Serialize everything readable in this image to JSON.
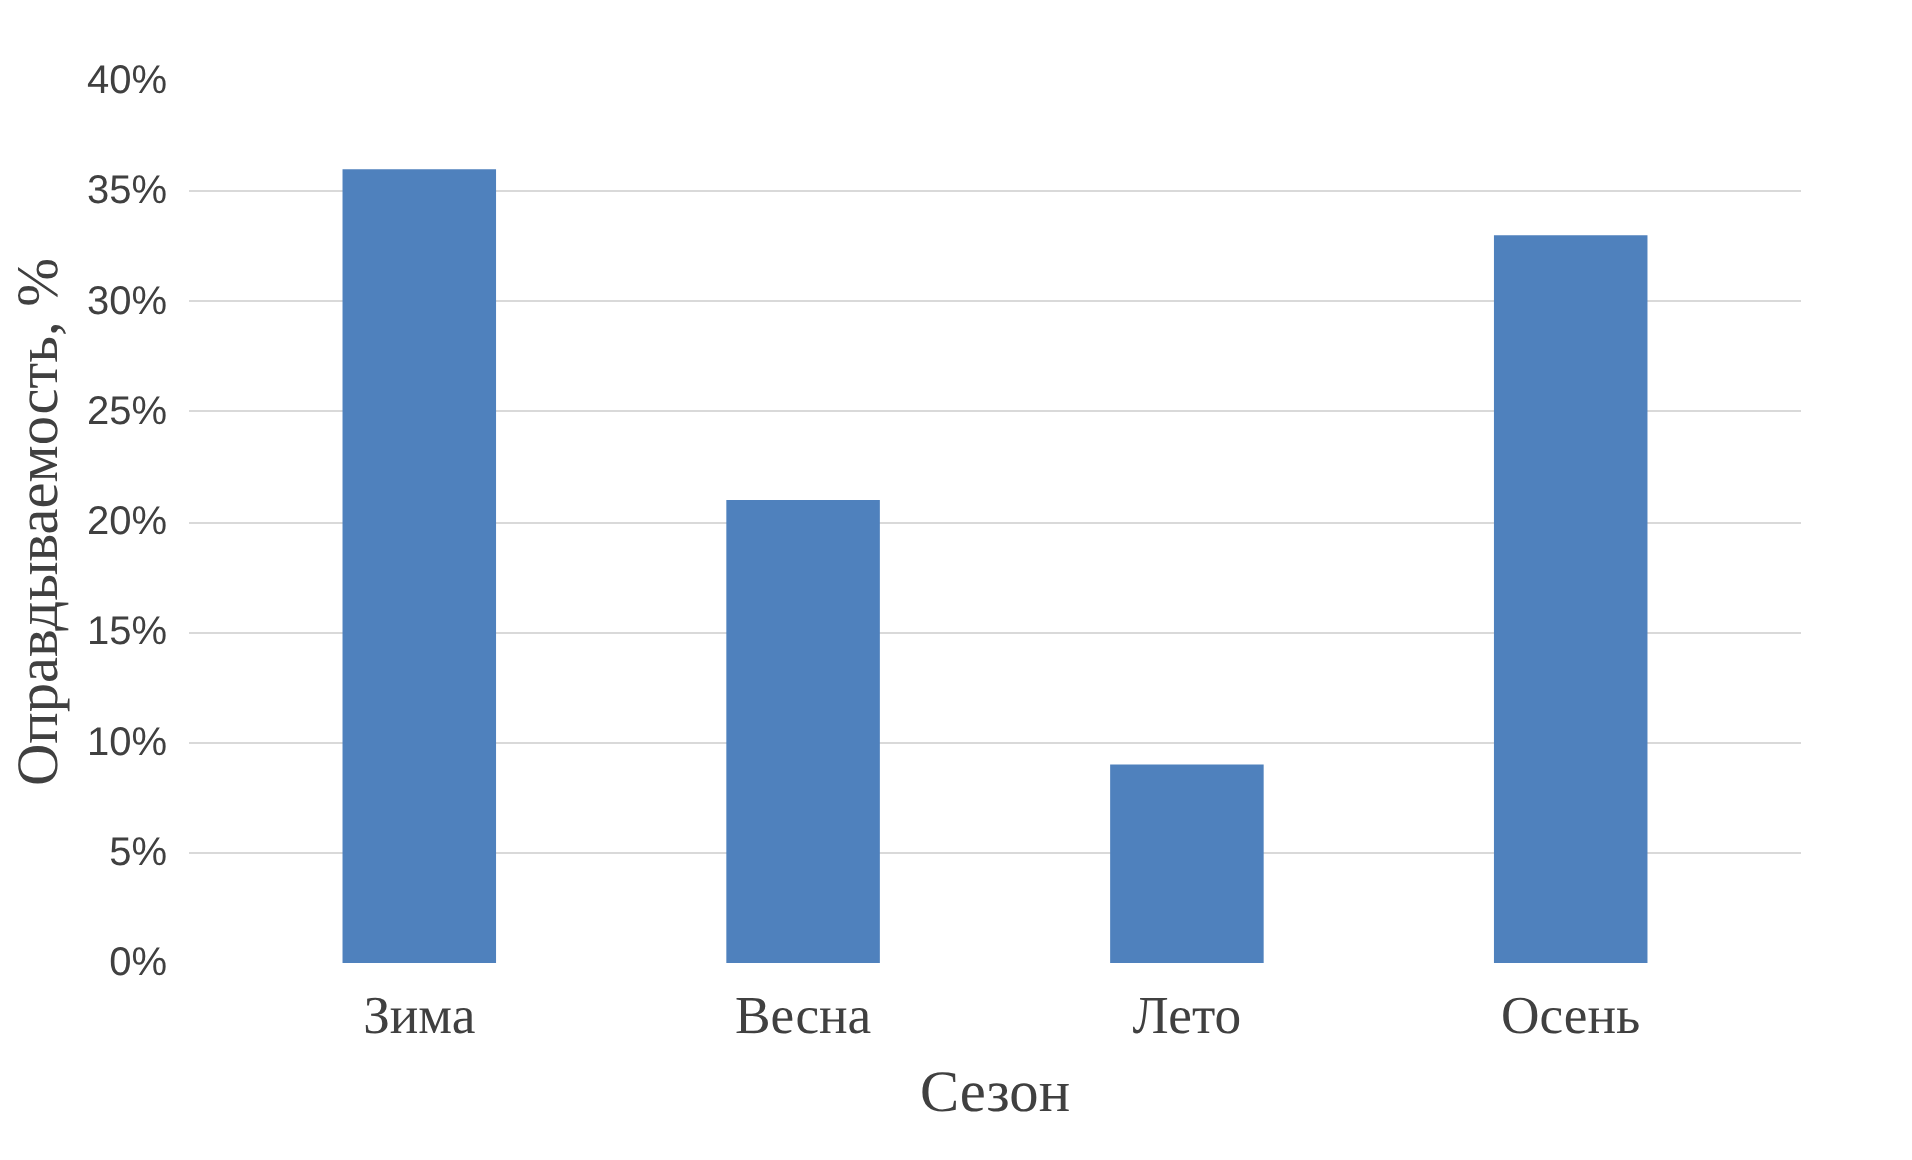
{
  "chart_data": {
    "type": "bar",
    "xlabel": "Сезон",
    "ylabel": "Оправдываемость, %",
    "categories": [
      "Зима",
      "Весна",
      "Лето",
      "Осень"
    ],
    "values": [
      36,
      21,
      9,
      33
    ],
    "color": "#4f81bd",
    "ylim": [
      0,
      40
    ],
    "yticks": [
      {
        "value": 0,
        "label": "0%"
      },
      {
        "value": 5,
        "label": "5%"
      },
      {
        "value": 10,
        "label": "10%"
      },
      {
        "value": 15,
        "label": "15%"
      },
      {
        "value": 20,
        "label": "20%"
      },
      {
        "value": 25,
        "label": "25%"
      },
      {
        "value": 30,
        "label": "30%"
      },
      {
        "value": 35,
        "label": "35%"
      },
      {
        "value": 40,
        "label": "40%"
      }
    ],
    "grid": "y"
  }
}
